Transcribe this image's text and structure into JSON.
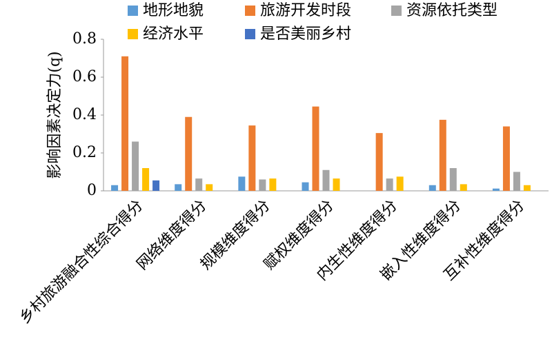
{
  "chart_data": {
    "type": "bar",
    "y_label": "影响因素决定力(q)",
    "categories": [
      "乡村旅游融合性综合得分",
      "网络维度得分",
      "规模维度得分",
      "赋权维度得分",
      "内生性维度得分",
      "嵌入性维度得分",
      "互补性维度得分"
    ],
    "series": [
      {
        "name": "地形地貌",
        "color": "#5b9bd5",
        "values": [
          0.03,
          0.035,
          0.075,
          0.045,
          0,
          0.03,
          0.012
        ]
      },
      {
        "name": "旅游开发时段",
        "color": "#ed7d31",
        "values": [
          0.71,
          0.39,
          0.345,
          0.445,
          0.305,
          0.375,
          0.34
        ]
      },
      {
        "name": "资源依托类型",
        "color": "#a5a5a5",
        "values": [
          0.26,
          0.065,
          0.06,
          0.11,
          0.065,
          0.12,
          0.1
        ]
      },
      {
        "name": "经济水平",
        "color": "#ffc000",
        "values": [
          0.12,
          0.035,
          0.065,
          0.065,
          0.075,
          0.035,
          0.03
        ]
      },
      {
        "name": "是否美丽乡村",
        "color": "#4472c4",
        "values": [
          0.055,
          0,
          0,
          0,
          0,
          0,
          0
        ]
      }
    ],
    "ylim": [
      0,
      0.8
    ],
    "yticks": [
      0,
      0.2,
      0.4,
      0.6,
      0.8
    ]
  }
}
